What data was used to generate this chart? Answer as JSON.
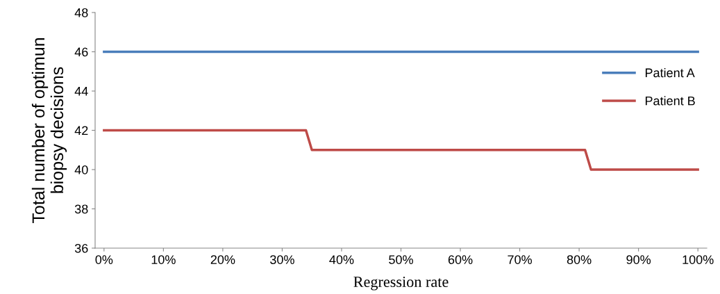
{
  "chart_data": {
    "type": "line",
    "xlabel": "Regression rate",
    "ylabel": "Total number of optimun\nbiopsy decisions",
    "series": [
      {
        "name": "Patient A",
        "color": "#4a7ebb",
        "x": [
          0,
          100
        ],
        "values": [
          46,
          46
        ]
      },
      {
        "name": "Patient B",
        "color": "#be4b48",
        "x": [
          0,
          34,
          35,
          81,
          82,
          100
        ],
        "values": [
          42,
          42,
          41,
          41,
          40,
          40
        ]
      }
    ],
    "xlim": [
      -1.5,
      101.5
    ],
    "xticks": [
      {
        "value": 0,
        "label": "0%"
      },
      {
        "value": 10,
        "label": "10%"
      },
      {
        "value": 20,
        "label": "20%"
      },
      {
        "value": 30,
        "label": "30%"
      },
      {
        "value": 40,
        "label": "40%"
      },
      {
        "value": 50,
        "label": "50%"
      },
      {
        "value": 60,
        "label": "60%"
      },
      {
        "value": 70,
        "label": "70%"
      },
      {
        "value": 80,
        "label": "80%"
      },
      {
        "value": 90,
        "label": "90%"
      },
      {
        "value": 100,
        "label": "100%"
      }
    ],
    "ylim": [
      36,
      48
    ],
    "yticks": [
      36,
      38,
      40,
      42,
      44,
      46,
      48
    ],
    "grid": false,
    "legend": "right",
    "marker": "none",
    "line_style": "solid"
  }
}
